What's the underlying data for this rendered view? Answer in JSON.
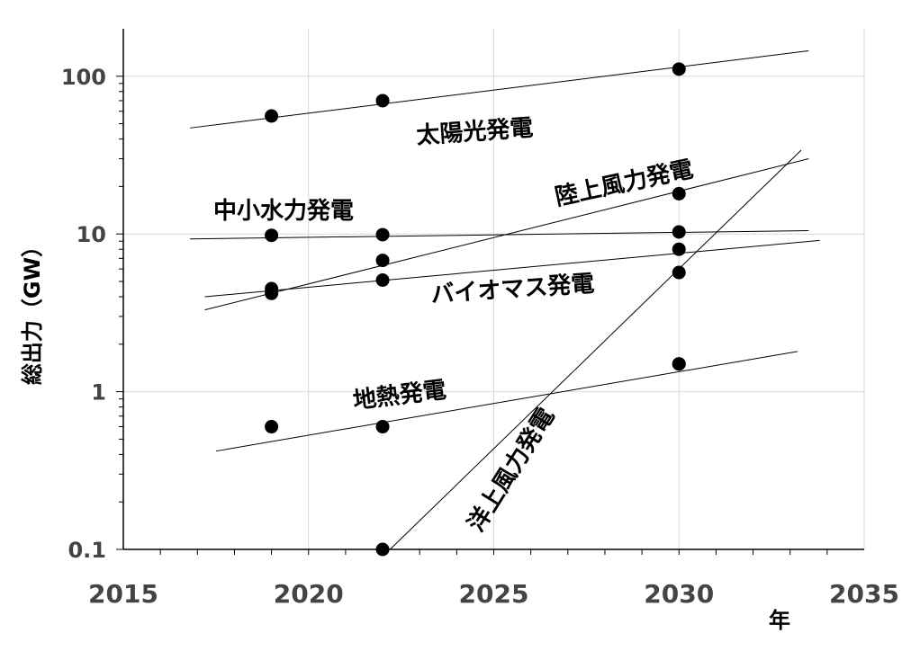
{
  "chart_data": {
    "type": "scatter",
    "title": "",
    "xlabel": "年",
    "ylabel": "総出力（GW）",
    "xlim": [
      2015,
      2035
    ],
    "ylim": [
      0.1,
      200
    ],
    "y_scale": "log",
    "x_ticks": [
      "2015",
      "2020",
      "2025",
      "2030",
      "2035"
    ],
    "y_ticks": [
      "0.1",
      "1",
      "10",
      "100"
    ],
    "grid": true,
    "series": [
      {
        "name": "太陽光発電",
        "points": [
          [
            2019,
            56
          ],
          [
            2022,
            70
          ],
          [
            2030,
            111
          ]
        ],
        "trend": [
          [
            2016.8,
            47
          ],
          [
            2033.5,
            145
          ]
        ]
      },
      {
        "name": "陸上風力発電",
        "points": [
          [
            2022,
            6.8
          ],
          [
            2030,
            18
          ]
        ],
        "trend": [
          [
            2017.2,
            3.3
          ],
          [
            2033.5,
            30
          ]
        ]
      },
      {
        "name": "中小水力発電",
        "points": [
          [
            2019,
            9.8
          ],
          [
            2022,
            9.9
          ],
          [
            2030,
            10.3
          ]
        ],
        "trend": [
          [
            2016.8,
            9.3
          ],
          [
            2033.5,
            10.5
          ]
        ]
      },
      {
        "name": "バイオマス発電",
        "points": [
          [
            2019,
            4.2
          ],
          [
            2019,
            4.5
          ],
          [
            2022,
            5.1
          ],
          [
            2030,
            5.7
          ],
          [
            2030,
            8
          ]
        ],
        "trend": [
          [
            2017.2,
            4.0
          ],
          [
            2033.8,
            9.1
          ]
        ]
      },
      {
        "name": "地熱発電",
        "points": [
          [
            2019,
            0.6
          ],
          [
            2022,
            0.6
          ],
          [
            2030,
            1.5
          ]
        ],
        "trend": [
          [
            2017.5,
            0.42
          ],
          [
            2033.2,
            1.8
          ]
        ]
      },
      {
        "name": "洋上風力発電",
        "points": [
          [
            2022,
            0.1
          ],
          [
            2030,
            1.5
          ]
        ],
        "trend": [
          [
            2022.2,
            0.1
          ],
          [
            2033.3,
            34
          ]
        ]
      }
    ]
  }
}
